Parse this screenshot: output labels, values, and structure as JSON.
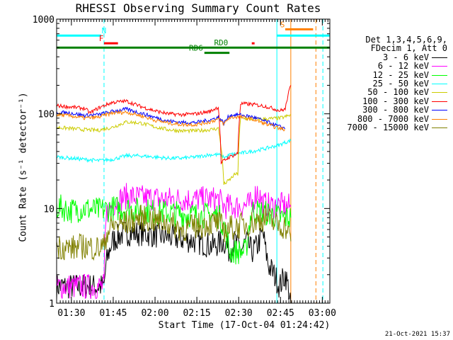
{
  "title": "RHESSI Observing Summary Count Rates",
  "xlabel": "Start Time (17-Oct-04 01:24:42)",
  "ylabel": "Count Rate (s⁻¹ detector⁻¹)",
  "timestamp": "21-Oct-2021 15:37",
  "legend": {
    "header1": "Det 1,3,4,5,6,9,",
    "header2": "FDecim 1, Att 0"
  },
  "chart_data": {
    "type": "line",
    "x_unit": "minutes (start 01:24:42)",
    "xlim": [
      0,
      98
    ],
    "ylim": [
      1,
      1000
    ],
    "y_scale": "log",
    "x_ticks": [
      {
        "value": 5.3,
        "label": "01:30"
      },
      {
        "value": 20.3,
        "label": "01:45"
      },
      {
        "value": 35.3,
        "label": "02:00"
      },
      {
        "value": 50.3,
        "label": "02:15"
      },
      {
        "value": 65.3,
        "label": "02:30"
      },
      {
        "value": 80.3,
        "label": "02:45"
      },
      {
        "value": 95.3,
        "label": "03:00"
      }
    ],
    "y_ticks": [
      {
        "value": 1,
        "label": "1"
      },
      {
        "value": 10,
        "label": "10"
      },
      {
        "value": 100,
        "label": "100"
      },
      {
        "value": 1000,
        "label": "1000"
      }
    ],
    "series": [
      {
        "name": "3 - 6 keV",
        "color": "#000000",
        "x": [
          0,
          17,
          18,
          20,
          24,
          30,
          40,
          50,
          56,
          60,
          62,
          64,
          66,
          68,
          70,
          72,
          74,
          75,
          76,
          80,
          82,
          84
        ],
        "y": [
          1.5,
          1.5,
          2.8,
          4.5,
          5.5,
          5.5,
          5.0,
          4.5,
          4.0,
          4.5,
          3.5,
          4.5,
          3.5,
          4.5,
          3.5,
          4.0,
          5.5,
          3.5,
          2.5,
          1.5,
          2.0,
          1.0
        ]
      },
      {
        "name": "6 - 12 keV",
        "color": "#ff00ff",
        "x": [
          0,
          17,
          18,
          20,
          25,
          30,
          40,
          50,
          58,
          60,
          65,
          70,
          72,
          74,
          75,
          78,
          80,
          82,
          84
        ],
        "y": [
          1.5,
          1.5,
          9.0,
          11.0,
          13.5,
          13.0,
          12.5,
          12.5,
          12.5,
          10.5,
          10.5,
          11.0,
          15.5,
          11.0,
          11.0,
          10.5,
          11.0,
          10.5,
          10.5
        ]
      },
      {
        "name": "12 - 25 keV",
        "color": "#00ff00",
        "x": [
          0,
          5,
          10,
          15,
          20,
          25,
          30,
          40,
          50,
          58,
          60,
          61,
          62,
          64,
          66,
          68,
          70,
          75,
          78,
          80,
          82,
          84
        ],
        "y": [
          10.5,
          9.5,
          10.0,
          9.5,
          10.0,
          10.0,
          9.5,
          9.0,
          8.5,
          8.5,
          6.5,
          5.0,
          3.5,
          3.5,
          3.5,
          3.5,
          9.5,
          9.0,
          8.5,
          8.0,
          8.0,
          8.0
        ]
      },
      {
        "name": "25 - 50 keV",
        "color": "#00ffff",
        "x": [
          0,
          5,
          10,
          15,
          20,
          25,
          30,
          35,
          40,
          45,
          50,
          55,
          58,
          60,
          61,
          62,
          65,
          70,
          75,
          80,
          82,
          84
        ],
        "y": [
          35,
          34,
          33,
          32,
          33,
          36,
          36,
          35,
          34,
          34,
          35,
          37,
          37,
          35,
          35,
          37,
          38,
          40,
          43,
          47,
          50,
          52
        ]
      },
      {
        "name": "50 - 100 keV",
        "color": "#cccc00",
        "x": [
          0,
          10,
          15,
          20,
          25,
          30,
          35,
          40,
          45,
          50,
          55,
          58,
          60,
          61,
          62,
          64,
          65,
          66,
          70,
          75,
          80,
          82,
          84
        ],
        "y": [
          72,
          68,
          67,
          72,
          82,
          80,
          73,
          68,
          66,
          66,
          68,
          70,
          18,
          19,
          20,
          23,
          23,
          90,
          88,
          88,
          90,
          93,
          97
        ]
      },
      {
        "name": "100 - 300 keV",
        "color": "#ff0000",
        "x": [
          0,
          5,
          10,
          12,
          15,
          20,
          25,
          30,
          35,
          40,
          45,
          50,
          55,
          58,
          59,
          60,
          62,
          65,
          66,
          70,
          75,
          80,
          82,
          84
        ],
        "y": [
          122,
          118,
          114,
          102,
          115,
          132,
          136,
          120,
          108,
          100,
          98,
          100,
          106,
          118,
          30,
          32,
          35,
          38,
          128,
          126,
          120,
          108,
          112,
          200
        ]
      },
      {
        "name": "300 - 800 keV",
        "color": "#0000ff",
        "x": [
          0,
          5,
          10,
          15,
          20,
          25,
          30,
          35,
          40,
          45,
          50,
          55,
          58,
          60,
          62,
          65,
          70,
          75,
          80,
          82
        ],
        "y": [
          104,
          102,
          96,
          98,
          106,
          112,
          102,
          92,
          84,
          81,
          81,
          86,
          92,
          80,
          96,
          98,
          93,
          83,
          73,
          70
        ]
      },
      {
        "name": "800 - 7000 keV",
        "color": "#ff8000",
        "x": [
          0,
          5,
          10,
          15,
          20,
          25,
          30,
          35,
          40,
          45,
          50,
          55,
          58,
          60,
          62,
          65,
          70,
          75,
          80,
          82
        ],
        "y": [
          98,
          95,
          90,
          92,
          102,
          104,
          96,
          86,
          80,
          77,
          77,
          82,
          88,
          78,
          91,
          93,
          88,
          78,
          70,
          68
        ]
      },
      {
        "name": "7000 - 15000 keV",
        "color": "#808000",
        "x": [
          0,
          5,
          10,
          15,
          17,
          18,
          20,
          25,
          30,
          35,
          40,
          45,
          50,
          55,
          58,
          60,
          65,
          70,
          75,
          78,
          80,
          82,
          84
        ],
        "y": [
          4.0,
          3.8,
          4.0,
          3.8,
          4.0,
          5.5,
          6.5,
          7.0,
          8.0,
          7.5,
          7.0,
          6.0,
          6.5,
          7.0,
          7.0,
          6.0,
          6.5,
          7.0,
          8.0,
          7.0,
          6.5,
          6.5,
          4.5
        ]
      }
    ],
    "flag_bars": [
      {
        "label": "N",
        "color": "#00ffff",
        "x_start": 0,
        "x_end": 16,
        "y": 670,
        "label_x": 17
      },
      {
        "label": "",
        "color": "#00ffff",
        "x_start": 79,
        "x_end": 98,
        "y": 670,
        "label_x": null
      },
      {
        "label": "F",
        "color": "#ff0000",
        "x_start": 17,
        "x_end": 22,
        "y": 555,
        "label_x": 16
      },
      {
        "label": "",
        "color": "#ff0000",
        "x_start": 70,
        "x_end": 71,
        "y": 555,
        "label_x": null
      },
      {
        "label": "RD0",
        "color": "#008000",
        "x_start": 0,
        "x_end": 98,
        "y": 500,
        "label_x": 59
      },
      {
        "label": "RD6",
        "color": "#008000",
        "x_start": 53,
        "x_end": 62,
        "y": 440,
        "label_x": 50
      },
      {
        "label": "S",
        "color": "#ff8000",
        "x_start": 82,
        "x_end": 92,
        "y": 780,
        "label_x": 81
      }
    ],
    "vlines": [
      {
        "x": 17,
        "color": "#00ffff",
        "style": "dashed"
      },
      {
        "x": 79,
        "color": "#00ffff",
        "style": "solid"
      },
      {
        "x": 84,
        "color": "#ff8000",
        "style": "solid"
      },
      {
        "x": 93,
        "color": "#ff8000",
        "style": "dashed"
      },
      {
        "x": 95.5,
        "color": "#00ffff",
        "style": "dashed"
      }
    ]
  }
}
